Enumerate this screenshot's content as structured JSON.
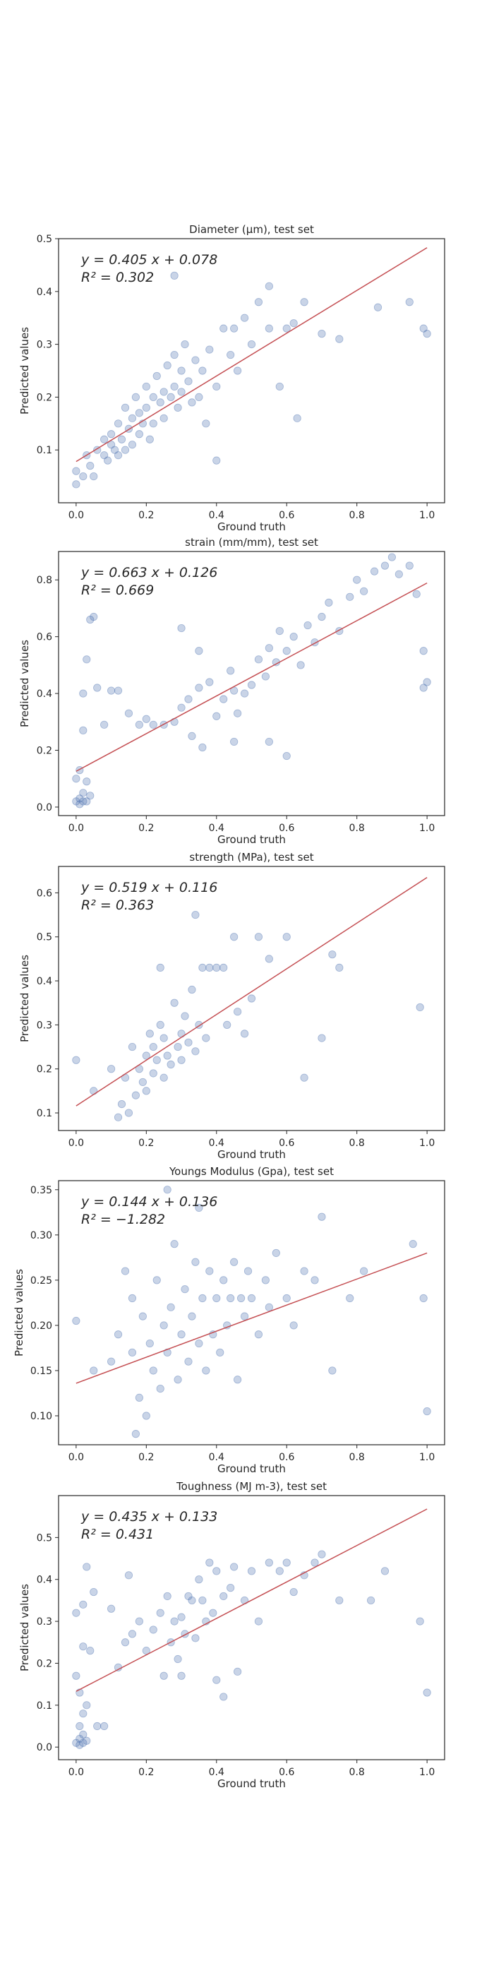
{
  "figure": {
    "background": "#ffffff",
    "point_color": "#4c72b0",
    "point_alpha": 0.3,
    "fit_color": "#c44e52",
    "frame_color": "#262626"
  },
  "chart_data": [
    {
      "type": "scatter",
      "title": "Diameter (µm), test set",
      "xlabel": "Ground truth",
      "ylabel": "Predicted values",
      "xlim": [
        -0.05,
        1.05
      ],
      "ylim": [
        0.0,
        0.5
      ],
      "xticks": [
        "0.0",
        "0.2",
        "0.4",
        "0.6",
        "0.8",
        "1.0"
      ],
      "yticks": [
        "0.1",
        "0.2",
        "0.3",
        "0.4",
        "0.5"
      ],
      "fit": {
        "slope": 0.405,
        "intercept": 0.078,
        "equation": "y = 0.405 x + 0.078",
        "r2": "R² = 0.302"
      },
      "points": [
        [
          0.0,
          0.035
        ],
        [
          0.0,
          0.06
        ],
        [
          0.02,
          0.05
        ],
        [
          0.03,
          0.09
        ],
        [
          0.04,
          0.07
        ],
        [
          0.05,
          0.05
        ],
        [
          0.06,
          0.1
        ],
        [
          0.08,
          0.09
        ],
        [
          0.08,
          0.12
        ],
        [
          0.09,
          0.08
        ],
        [
          0.1,
          0.11
        ],
        [
          0.1,
          0.13
        ],
        [
          0.11,
          0.1
        ],
        [
          0.12,
          0.09
        ],
        [
          0.12,
          0.15
        ],
        [
          0.13,
          0.12
        ],
        [
          0.14,
          0.1
        ],
        [
          0.14,
          0.18
        ],
        [
          0.15,
          0.14
        ],
        [
          0.16,
          0.16
        ],
        [
          0.16,
          0.11
        ],
        [
          0.17,
          0.2
        ],
        [
          0.18,
          0.13
        ],
        [
          0.18,
          0.17
        ],
        [
          0.19,
          0.15
        ],
        [
          0.2,
          0.22
        ],
        [
          0.2,
          0.18
        ],
        [
          0.21,
          0.12
        ],
        [
          0.22,
          0.2
        ],
        [
          0.22,
          0.15
        ],
        [
          0.23,
          0.24
        ],
        [
          0.24,
          0.19
        ],
        [
          0.25,
          0.21
        ],
        [
          0.25,
          0.16
        ],
        [
          0.26,
          0.26
        ],
        [
          0.27,
          0.2
        ],
        [
          0.28,
          0.22
        ],
        [
          0.28,
          0.28
        ],
        [
          0.29,
          0.18
        ],
        [
          0.3,
          0.25
        ],
        [
          0.3,
          0.21
        ],
        [
          0.31,
          0.3
        ],
        [
          0.32,
          0.23
        ],
        [
          0.33,
          0.19
        ],
        [
          0.34,
          0.27
        ],
        [
          0.35,
          0.2
        ],
        [
          0.36,
          0.25
        ],
        [
          0.37,
          0.15
        ],
        [
          0.38,
          0.29
        ],
        [
          0.4,
          0.22
        ],
        [
          0.42,
          0.33
        ],
        [
          0.44,
          0.28
        ],
        [
          0.45,
          0.33
        ],
        [
          0.46,
          0.25
        ],
        [
          0.48,
          0.35
        ],
        [
          0.5,
          0.3
        ],
        [
          0.52,
          0.38
        ],
        [
          0.55,
          0.33
        ],
        [
          0.58,
          0.22
        ],
        [
          0.6,
          0.33
        ],
        [
          0.62,
          0.34
        ],
        [
          0.65,
          0.38
        ],
        [
          0.7,
          0.32
        ],
        [
          0.75,
          0.31
        ],
        [
          0.86,
          0.37
        ],
        [
          0.95,
          0.38
        ],
        [
          0.99,
          0.33
        ],
        [
          1.0,
          0.32
        ],
        [
          0.28,
          0.43
        ],
        [
          0.4,
          0.08
        ],
        [
          0.55,
          0.41
        ],
        [
          0.63,
          0.16
        ]
      ]
    },
    {
      "type": "scatter",
      "title": "strain (mm/mm), test set",
      "xlabel": "Ground truth",
      "ylabel": "Predicted values",
      "xlim": [
        -0.05,
        1.05
      ],
      "ylim": [
        -0.03,
        0.9
      ],
      "xticks": [
        "0.0",
        "0.2",
        "0.4",
        "0.6",
        "0.8",
        "1.0"
      ],
      "yticks": [
        "0.0",
        "0.2",
        "0.4",
        "0.6",
        "0.8"
      ],
      "fit": {
        "slope": 0.663,
        "intercept": 0.126,
        "equation": "y = 0.663 x + 0.126",
        "r2": "R² = 0.669"
      },
      "points": [
        [
          0.0,
          0.02
        ],
        [
          0.01,
          0.01
        ],
        [
          0.01,
          0.03
        ],
        [
          0.02,
          0.02
        ],
        [
          0.02,
          0.05
        ],
        [
          0.03,
          0.02
        ],
        [
          0.03,
          0.09
        ],
        [
          0.04,
          0.04
        ],
        [
          0.0,
          0.1
        ],
        [
          0.01,
          0.13
        ],
        [
          0.02,
          0.27
        ],
        [
          0.02,
          0.4
        ],
        [
          0.03,
          0.52
        ],
        [
          0.04,
          0.66
        ],
        [
          0.05,
          0.67
        ],
        [
          0.06,
          0.42
        ],
        [
          0.08,
          0.29
        ],
        [
          0.1,
          0.41
        ],
        [
          0.12,
          0.41
        ],
        [
          0.15,
          0.33
        ],
        [
          0.18,
          0.29
        ],
        [
          0.2,
          0.31
        ],
        [
          0.22,
          0.29
        ],
        [
          0.25,
          0.29
        ],
        [
          0.28,
          0.3
        ],
        [
          0.3,
          0.35
        ],
        [
          0.32,
          0.38
        ],
        [
          0.33,
          0.25
        ],
        [
          0.35,
          0.42
        ],
        [
          0.36,
          0.21
        ],
        [
          0.38,
          0.44
        ],
        [
          0.4,
          0.32
        ],
        [
          0.42,
          0.38
        ],
        [
          0.44,
          0.48
        ],
        [
          0.45,
          0.41
        ],
        [
          0.46,
          0.33
        ],
        [
          0.48,
          0.4
        ],
        [
          0.5,
          0.43
        ],
        [
          0.52,
          0.52
        ],
        [
          0.54,
          0.46
        ],
        [
          0.55,
          0.56
        ],
        [
          0.57,
          0.51
        ],
        [
          0.58,
          0.62
        ],
        [
          0.6,
          0.55
        ],
        [
          0.62,
          0.6
        ],
        [
          0.64,
          0.5
        ],
        [
          0.66,
          0.64
        ],
        [
          0.68,
          0.58
        ],
        [
          0.7,
          0.67
        ],
        [
          0.72,
          0.72
        ],
        [
          0.75,
          0.62
        ],
        [
          0.78,
          0.74
        ],
        [
          0.8,
          0.8
        ],
        [
          0.82,
          0.76
        ],
        [
          0.85,
          0.83
        ],
        [
          0.88,
          0.85
        ],
        [
          0.9,
          0.88
        ],
        [
          0.92,
          0.82
        ],
        [
          0.95,
          0.85
        ],
        [
          0.97,
          0.75
        ],
        [
          0.99,
          0.55
        ],
        [
          0.99,
          0.42
        ],
        [
          1.0,
          0.44
        ],
        [
          0.3,
          0.63
        ],
        [
          0.35,
          0.55
        ],
        [
          0.45,
          0.23
        ],
        [
          0.55,
          0.23
        ],
        [
          0.6,
          0.18
        ]
      ]
    },
    {
      "type": "scatter",
      "title": "strength (MPa), test set",
      "xlabel": "Ground truth",
      "ylabel": "Predicted values",
      "xlim": [
        -0.05,
        1.05
      ],
      "ylim": [
        0.06,
        0.66
      ],
      "xticks": [
        "0.0",
        "0.2",
        "0.4",
        "0.6",
        "0.8",
        "1.0"
      ],
      "yticks": [
        "0.1",
        "0.2",
        "0.3",
        "0.4",
        "0.5",
        "0.6"
      ],
      "fit": {
        "slope": 0.519,
        "intercept": 0.116,
        "equation": "y = 0.519 x + 0.116",
        "r2": "R² = 0.363"
      },
      "points": [
        [
          0.0,
          0.22
        ],
        [
          0.05,
          0.15
        ],
        [
          0.1,
          0.2
        ],
        [
          0.12,
          0.09
        ],
        [
          0.13,
          0.12
        ],
        [
          0.14,
          0.18
        ],
        [
          0.15,
          0.1
        ],
        [
          0.16,
          0.25
        ],
        [
          0.17,
          0.14
        ],
        [
          0.18,
          0.2
        ],
        [
          0.19,
          0.17
        ],
        [
          0.2,
          0.23
        ],
        [
          0.2,
          0.15
        ],
        [
          0.21,
          0.28
        ],
        [
          0.22,
          0.19
        ],
        [
          0.22,
          0.25
        ],
        [
          0.23,
          0.22
        ],
        [
          0.24,
          0.3
        ],
        [
          0.25,
          0.18
        ],
        [
          0.25,
          0.27
        ],
        [
          0.26,
          0.23
        ],
        [
          0.27,
          0.21
        ],
        [
          0.28,
          0.35
        ],
        [
          0.29,
          0.25
        ],
        [
          0.3,
          0.28
        ],
        [
          0.3,
          0.22
        ],
        [
          0.31,
          0.32
        ],
        [
          0.32,
          0.26
        ],
        [
          0.33,
          0.38
        ],
        [
          0.34,
          0.24
        ],
        [
          0.35,
          0.3
        ],
        [
          0.36,
          0.43
        ],
        [
          0.37,
          0.27
        ],
        [
          0.38,
          0.43
        ],
        [
          0.4,
          0.43
        ],
        [
          0.42,
          0.43
        ],
        [
          0.43,
          0.3
        ],
        [
          0.45,
          0.5
        ],
        [
          0.46,
          0.33
        ],
        [
          0.48,
          0.28
        ],
        [
          0.5,
          0.36
        ],
        [
          0.52,
          0.5
        ],
        [
          0.55,
          0.45
        ],
        [
          0.6,
          0.5
        ],
        [
          0.65,
          0.18
        ],
        [
          0.7,
          0.27
        ],
        [
          0.73,
          0.46
        ],
        [
          0.75,
          0.43
        ],
        [
          0.98,
          0.34
        ],
        [
          0.24,
          0.43
        ],
        [
          0.34,
          0.55
        ]
      ]
    },
    {
      "type": "scatter",
      "title": "Youngs Modulus (Gpa), test set",
      "xlabel": "Ground truth",
      "ylabel": "Predicted values",
      "xlim": [
        -0.05,
        1.05
      ],
      "ylim": [
        0.068,
        0.36
      ],
      "xticks": [
        "0.0",
        "0.2",
        "0.4",
        "0.6",
        "0.8",
        "1.0"
      ],
      "yticks": [
        "0.10",
        "0.15",
        "0.20",
        "0.25",
        "0.30",
        "0.35"
      ],
      "fit": {
        "slope": 0.144,
        "intercept": 0.136,
        "equation": "y = 0.144 x + 0.136",
        "r2": "R² = −1.282"
      },
      "points": [
        [
          0.0,
          0.205
        ],
        [
          0.05,
          0.15
        ],
        [
          0.1,
          0.16
        ],
        [
          0.12,
          0.19
        ],
        [
          0.14,
          0.26
        ],
        [
          0.16,
          0.23
        ],
        [
          0.16,
          0.17
        ],
        [
          0.17,
          0.08
        ],
        [
          0.18,
          0.12
        ],
        [
          0.19,
          0.21
        ],
        [
          0.2,
          0.1
        ],
        [
          0.21,
          0.18
        ],
        [
          0.22,
          0.15
        ],
        [
          0.23,
          0.25
        ],
        [
          0.24,
          0.13
        ],
        [
          0.25,
          0.2
        ],
        [
          0.26,
          0.17
        ],
        [
          0.27,
          0.22
        ],
        [
          0.28,
          0.29
        ],
        [
          0.29,
          0.14
        ],
        [
          0.3,
          0.19
        ],
        [
          0.31,
          0.24
        ],
        [
          0.32,
          0.16
        ],
        [
          0.33,
          0.21
        ],
        [
          0.34,
          0.27
        ],
        [
          0.35,
          0.18
        ],
        [
          0.36,
          0.23
        ],
        [
          0.37,
          0.15
        ],
        [
          0.38,
          0.26
        ],
        [
          0.39,
          0.19
        ],
        [
          0.4,
          0.23
        ],
        [
          0.41,
          0.17
        ],
        [
          0.42,
          0.25
        ],
        [
          0.43,
          0.2
        ],
        [
          0.44,
          0.23
        ],
        [
          0.45,
          0.27
        ],
        [
          0.46,
          0.14
        ],
        [
          0.47,
          0.23
        ],
        [
          0.48,
          0.21
        ],
        [
          0.49,
          0.26
        ],
        [
          0.5,
          0.23
        ],
        [
          0.52,
          0.19
        ],
        [
          0.54,
          0.25
        ],
        [
          0.55,
          0.22
        ],
        [
          0.57,
          0.28
        ],
        [
          0.6,
          0.23
        ],
        [
          0.62,
          0.2
        ],
        [
          0.65,
          0.26
        ],
        [
          0.68,
          0.25
        ],
        [
          0.7,
          0.32
        ],
        [
          0.73,
          0.15
        ],
        [
          0.78,
          0.23
        ],
        [
          0.82,
          0.26
        ],
        [
          0.96,
          0.29
        ],
        [
          0.99,
          0.23
        ],
        [
          1.0,
          0.105
        ],
        [
          0.35,
          0.33
        ],
        [
          0.26,
          0.35
        ]
      ]
    },
    {
      "type": "scatter",
      "title": "Toughness (MJ m-3), test set",
      "xlabel": "Ground truth",
      "ylabel": "Predicted values",
      "xlim": [
        -0.05,
        1.05
      ],
      "ylim": [
        -0.03,
        0.6
      ],
      "xticks": [
        "0.0",
        "0.2",
        "0.4",
        "0.6",
        "0.8",
        "1.0"
      ],
      "yticks": [
        "0.0",
        "0.1",
        "0.2",
        "0.3",
        "0.4",
        "0.5"
      ],
      "fit": {
        "slope": 0.435,
        "intercept": 0.133,
        "equation": "y = 0.435 x + 0.133",
        "r2": "R² = 0.431"
      },
      "points": [
        [
          0.0,
          0.01
        ],
        [
          0.01,
          0.005
        ],
        [
          0.01,
          0.02
        ],
        [
          0.02,
          0.01
        ],
        [
          0.02,
          0.03
        ],
        [
          0.03,
          0.015
        ],
        [
          0.01,
          0.05
        ],
        [
          0.02,
          0.08
        ],
        [
          0.03,
          0.1
        ],
        [
          0.0,
          0.17
        ],
        [
          0.01,
          0.13
        ],
        [
          0.02,
          0.24
        ],
        [
          0.0,
          0.32
        ],
        [
          0.02,
          0.34
        ],
        [
          0.03,
          0.43
        ],
        [
          0.04,
          0.23
        ],
        [
          0.05,
          0.37
        ],
        [
          0.06,
          0.05
        ],
        [
          0.08,
          0.05
        ],
        [
          0.1,
          0.33
        ],
        [
          0.12,
          0.19
        ],
        [
          0.14,
          0.25
        ],
        [
          0.15,
          0.41
        ],
        [
          0.16,
          0.27
        ],
        [
          0.18,
          0.3
        ],
        [
          0.2,
          0.23
        ],
        [
          0.22,
          0.28
        ],
        [
          0.24,
          0.32
        ],
        [
          0.25,
          0.17
        ],
        [
          0.26,
          0.36
        ],
        [
          0.27,
          0.25
        ],
        [
          0.28,
          0.3
        ],
        [
          0.29,
          0.21
        ],
        [
          0.3,
          0.31
        ],
        [
          0.31,
          0.27
        ],
        [
          0.32,
          0.36
        ],
        [
          0.33,
          0.35
        ],
        [
          0.34,
          0.26
        ],
        [
          0.35,
          0.4
        ],
        [
          0.36,
          0.35
        ],
        [
          0.37,
          0.3
        ],
        [
          0.38,
          0.44
        ],
        [
          0.39,
          0.32
        ],
        [
          0.4,
          0.42
        ],
        [
          0.42,
          0.36
        ],
        [
          0.44,
          0.38
        ],
        [
          0.45,
          0.43
        ],
        [
          0.46,
          0.18
        ],
        [
          0.48,
          0.35
        ],
        [
          0.5,
          0.42
        ],
        [
          0.52,
          0.3
        ],
        [
          0.55,
          0.44
        ],
        [
          0.58,
          0.42
        ],
        [
          0.6,
          0.44
        ],
        [
          0.62,
          0.37
        ],
        [
          0.65,
          0.41
        ],
        [
          0.68,
          0.44
        ],
        [
          0.7,
          0.46
        ],
        [
          0.75,
          0.35
        ],
        [
          0.84,
          0.35
        ],
        [
          0.88,
          0.42
        ],
        [
          0.98,
          0.3
        ],
        [
          1.0,
          0.13
        ],
        [
          0.3,
          0.17
        ],
        [
          0.4,
          0.16
        ],
        [
          0.42,
          0.12
        ]
      ]
    }
  ]
}
